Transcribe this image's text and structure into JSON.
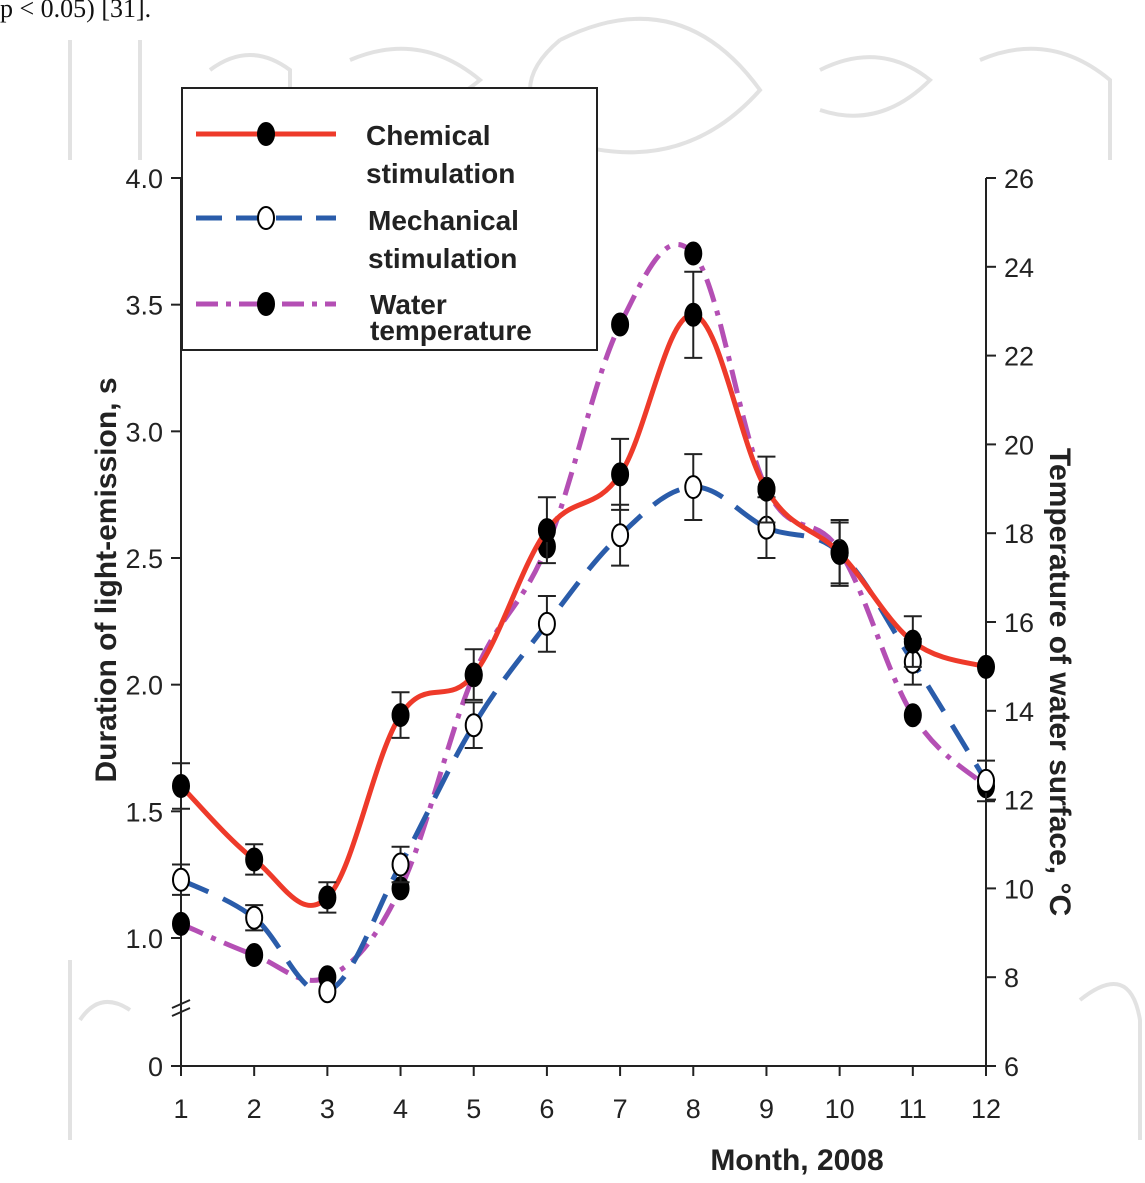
{
  "page": {
    "top_text": "p < 0.05) [31]."
  },
  "chart_data": {
    "type": "line",
    "xlabel": "Month, 2008",
    "ylabel_left": "Duration of light-emission, s",
    "ylabel_right": "Temperature of water surface, °C",
    "x": [
      1,
      2,
      3,
      4,
      5,
      6,
      7,
      8,
      9,
      10,
      11,
      12
    ],
    "x_ticks": [
      "1",
      "2",
      "3",
      "4",
      "5",
      "6",
      "7",
      "8",
      "9",
      "10",
      "11",
      "12"
    ],
    "y_left_ticks": [
      {
        "value": 0,
        "label": "0"
      },
      {
        "value": 1.0,
        "label": "1.0"
      },
      {
        "value": 1.5,
        "label": "1.5"
      },
      {
        "value": 2.0,
        "label": "2.0"
      },
      {
        "value": 2.5,
        "label": "2.5"
      },
      {
        "value": 3.0,
        "label": "3.0"
      },
      {
        "value": 3.5,
        "label": "3.5"
      },
      {
        "value": 4.0,
        "label": "4.0"
      }
    ],
    "y_left_axis": {
      "break_from": 0,
      "break_to": 0.5,
      "max": 4.0
    },
    "y_right_ticks": [
      6,
      8,
      10,
      12,
      14,
      16,
      18,
      20,
      22,
      24,
      26
    ],
    "y_right_range": [
      6,
      26
    ],
    "grid": false,
    "legend_position": "top-left",
    "series": [
      {
        "name": "Chemical stimulation",
        "axis": "left",
        "color": "#ee3a2a",
        "dash": "solid",
        "marker": "filled",
        "values": [
          1.6,
          1.31,
          1.16,
          1.88,
          2.04,
          2.61,
          2.83,
          3.46,
          2.77,
          2.52,
          2.17,
          2.07
        ],
        "errors": [
          0.09,
          0.06,
          0.06,
          0.09,
          0.1,
          0.13,
          0.14,
          0.17,
          0.13,
          0.13,
          0.1,
          0.0
        ]
      },
      {
        "name": "Mechanical stimulation",
        "axis": "left",
        "color": "#2a5caa",
        "dash": "dashed",
        "marker": "open",
        "values": [
          1.23,
          1.08,
          0.79,
          1.29,
          1.84,
          2.24,
          2.59,
          2.78,
          2.62,
          2.52,
          2.09,
          1.62
        ],
        "errors": [
          0.06,
          0.05,
          0.0,
          0.07,
          0.09,
          0.11,
          0.12,
          0.13,
          0.12,
          0.12,
          0.09,
          0.08
        ]
      },
      {
        "name": "Water temperature",
        "axis": "right",
        "color": "#b44fb4",
        "dash": "dashdot",
        "marker": "filled",
        "values": [
          9.2,
          8.5,
          8.0,
          10.0,
          14.8,
          17.7,
          22.7,
          24.3,
          19.0,
          17.6,
          13.9,
          12.3
        ],
        "errors": []
      }
    ]
  }
}
